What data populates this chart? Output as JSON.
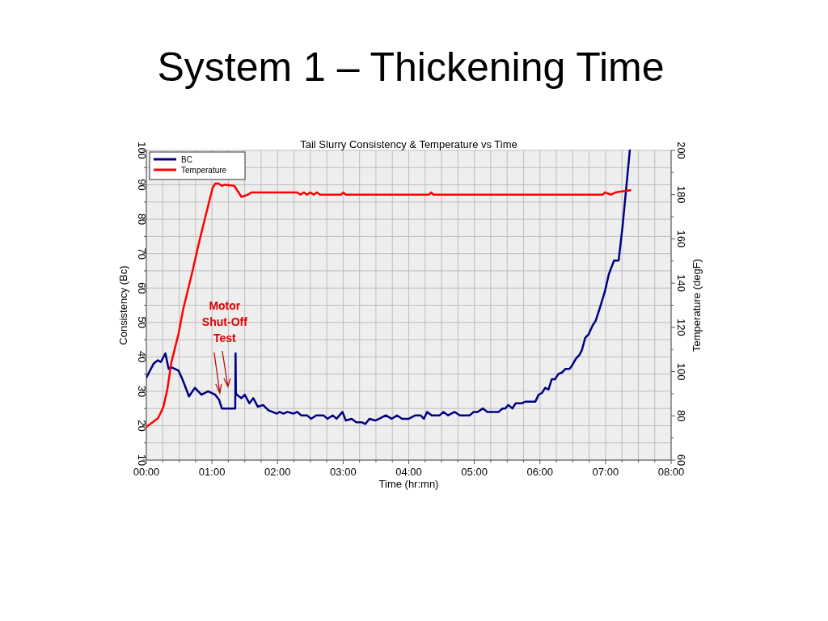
{
  "chart_data": {
    "type": "line",
    "title": "System 1 – Thickening Time",
    "subtitle": "Tail Slurry Consistency & Temperature vs Time",
    "xlabel": "Time (hr:mn)",
    "ylabel": "Consistency (Bc)",
    "y2label": "Temperature (degF)",
    "xlim": [
      0,
      8
    ],
    "xticks": [
      {
        "value": 0,
        "label": "00:00"
      },
      {
        "value": 0.25,
        "label": null
      },
      {
        "value": 0.5,
        "label": null
      },
      {
        "value": 0.75,
        "label": null
      },
      {
        "value": 1,
        "label": "01:00"
      },
      {
        "value": 1.25,
        "label": null
      },
      {
        "value": 1.5,
        "label": null
      },
      {
        "value": 1.75,
        "label": null
      },
      {
        "value": 2,
        "label": "02:00"
      },
      {
        "value": 2.25,
        "label": null
      },
      {
        "value": 2.5,
        "label": null
      },
      {
        "value": 2.75,
        "label": null
      },
      {
        "value": 3,
        "label": "03:00"
      },
      {
        "value": 3.25,
        "label": null
      },
      {
        "value": 3.5,
        "label": null
      },
      {
        "value": 3.75,
        "label": null
      },
      {
        "value": 4,
        "label": "04:00"
      },
      {
        "value": 4.25,
        "label": null
      },
      {
        "value": 4.5,
        "label": null
      },
      {
        "value": 4.75,
        "label": null
      },
      {
        "value": 5,
        "label": "05:00"
      },
      {
        "value": 5.25,
        "label": null
      },
      {
        "value": 5.5,
        "label": null
      },
      {
        "value": 5.75,
        "label": null
      },
      {
        "value": 6,
        "label": "06:00"
      },
      {
        "value": 6.25,
        "label": null
      },
      {
        "value": 6.5,
        "label": null
      },
      {
        "value": 6.75,
        "label": null
      },
      {
        "value": 7,
        "label": "07:00"
      },
      {
        "value": 7.25,
        "label": null
      },
      {
        "value": 7.5,
        "label": null
      },
      {
        "value": 7.75,
        "label": null
      },
      {
        "value": 8,
        "label": "08:00"
      }
    ],
    "ylim": [
      10,
      100
    ],
    "yticks": [
      10,
      {
        "value": 15,
        "label": null
      },
      20,
      {
        "value": 25,
        "label": null
      },
      30,
      {
        "value": 35,
        "label": null
      },
      40,
      {
        "value": 45,
        "label": null
      },
      50,
      {
        "value": 55,
        "label": null
      },
      60,
      {
        "value": 65,
        "label": null
      },
      70,
      {
        "value": 75,
        "label": null
      },
      80,
      {
        "value": 85,
        "label": null
      },
      90,
      {
        "value": 95,
        "label": null
      },
      100
    ],
    "y2lim": [
      60,
      200
    ],
    "y2ticks": [
      60,
      {
        "value": 70,
        "label": null
      },
      80,
      {
        "value": 90,
        "label": null
      },
      100,
      {
        "value": 110,
        "label": null
      },
      120,
      {
        "value": 130,
        "label": null
      },
      140,
      {
        "value": 150,
        "label": null
      },
      160,
      {
        "value": 170,
        "label": null
      },
      180,
      {
        "value": 190,
        "label": null
      },
      200
    ],
    "grid": true,
    "legend": "top left",
    "marker": "none",
    "line_style": "solid",
    "annotations": [
      {
        "text": "Motor Shut-Off Test",
        "x": 1.12,
        "y": 29.5
      }
    ],
    "series": [
      {
        "name": "BC",
        "color": "#000080",
        "x": [
          0,
          0.11,
          0.175,
          0.22,
          0.29,
          0.34,
          0.38,
          0.49,
          0.55,
          0.65,
          0.74,
          0.84,
          0.94,
          1.05,
          1.11,
          1.15,
          1.355,
          1.36,
          1.365,
          1.38,
          1.45,
          1.5,
          1.57,
          1.63,
          1.7,
          1.78,
          1.86,
          1.99,
          2.03,
          2.09,
          2.15,
          2.24,
          2.3,
          2.36,
          2.45,
          2.51,
          2.59,
          2.7,
          2.76,
          2.84,
          2.9,
          2.99,
          3.04,
          3.13,
          3.2,
          3.28,
          3.34,
          3.4,
          3.49,
          3.55,
          3.65,
          3.74,
          3.82,
          3.9,
          4.0,
          4.1,
          4.18,
          4.23,
          4.28,
          4.35,
          4.47,
          4.53,
          4.6,
          4.7,
          4.78,
          4.93,
          4.99,
          5.05,
          5.13,
          5.2,
          5.37,
          5.43,
          5.47,
          5.52,
          5.58,
          5.63,
          5.72,
          5.78,
          5.93,
          5.98,
          6.03,
          6.08,
          6.13,
          6.18,
          6.23,
          6.28,
          6.34,
          6.39,
          6.45,
          6.49,
          6.55,
          6.6,
          6.64,
          6.69,
          6.74,
          6.8,
          6.85,
          6.91,
          6.99,
          7.05,
          7.13,
          7.2,
          7.26,
          7.31,
          7.37
        ],
        "values": [
          34,
          38,
          39,
          38.5,
          41,
          36.5,
          37,
          36,
          33.5,
          28.5,
          31,
          29,
          30,
          29,
          27.5,
          25,
          25,
          41,
          29.5,
          29,
          28,
          29,
          26.5,
          28,
          25.5,
          26,
          24.5,
          23.5,
          24,
          23.5,
          24,
          23.5,
          24,
          23,
          23,
          22,
          23,
          23,
          22,
          23,
          22,
          24,
          21.5,
          22,
          21,
          21,
          20.5,
          22,
          21.5,
          22,
          23,
          22,
          23,
          22,
          22,
          23,
          23,
          22,
          24,
          23,
          23,
          24,
          23,
          24,
          23,
          23,
          24,
          24,
          25,
          24,
          24,
          25,
          25,
          26,
          25,
          26.5,
          26.5,
          27,
          27,
          29,
          29.5,
          31,
          30.5,
          33.5,
          33.5,
          35,
          35.5,
          36.5,
          36.5,
          37.5,
          39.5,
          40.5,
          42,
          45.5,
          46.5,
          49,
          50.5,
          54,
          59,
          64,
          68,
          68,
          78,
          88,
          100
        ]
      },
      {
        "name": "Temperature",
        "color": "#ff0000",
        "axis": "y2",
        "x": [
          0,
          0.18,
          0.26,
          0.32,
          0.38,
          0.49,
          0.56,
          0.7,
          0.8,
          0.9,
          1.01,
          1.05,
          1.1,
          1.15,
          1.2,
          1.34,
          1.45,
          1.55,
          1.6,
          1.65,
          2.3,
          2.35,
          2.4,
          2.45,
          2.5,
          2.55,
          2.6,
          2.65,
          2.97,
          3.0,
          3.04,
          4.31,
          4.34,
          4.38,
          6.96,
          6.99,
          7.09,
          7.15,
          7.38
        ],
        "values": [
          75,
          79,
          84,
          92,
          104,
          117,
          128,
          145,
          158,
          170,
          183,
          185,
          185,
          184,
          184.5,
          184,
          179,
          180,
          181,
          181,
          181,
          180,
          181,
          180,
          181,
          180,
          181,
          180,
          180,
          181,
          180,
          180,
          181,
          180,
          180,
          181,
          180,
          181,
          182
        ]
      }
    ]
  }
}
